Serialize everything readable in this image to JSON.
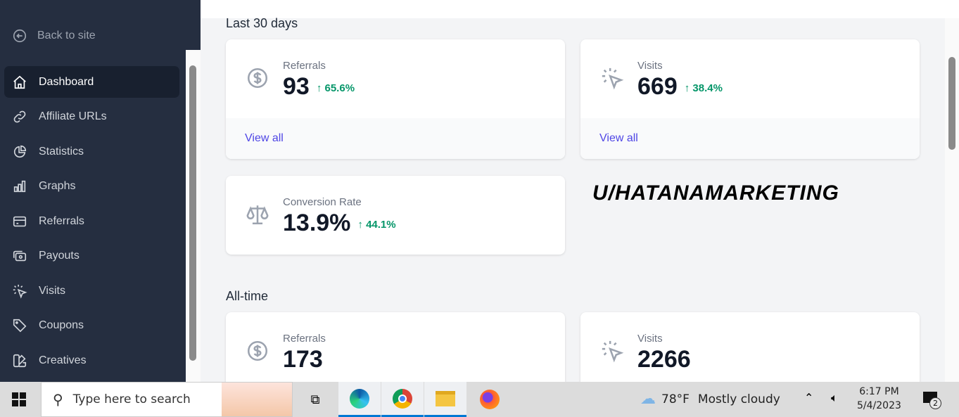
{
  "sidebar": {
    "back_label": "Back to site",
    "items": [
      {
        "label": "Dashboard",
        "icon": "home-icon",
        "active": true
      },
      {
        "label": "Affiliate URLs",
        "icon": "link-icon"
      },
      {
        "label": "Statistics",
        "icon": "pie-chart-icon"
      },
      {
        "label": "Graphs",
        "icon": "bar-chart-icon"
      },
      {
        "label": "Referrals",
        "icon": "credit-card-icon"
      },
      {
        "label": "Payouts",
        "icon": "cash-icon"
      },
      {
        "label": "Visits",
        "icon": "cursor-click-icon"
      },
      {
        "label": "Coupons",
        "icon": "tag-icon"
      },
      {
        "label": "Creatives",
        "icon": "color-swatch-icon"
      }
    ]
  },
  "last30": {
    "title": "Last 30 days",
    "referrals": {
      "label": "Referrals",
      "value": "93",
      "delta": "65.6%",
      "link": "View all"
    },
    "visits": {
      "label": "Visits",
      "value": "669",
      "delta": "38.4%",
      "link": "View all"
    },
    "conversion": {
      "label": "Conversion Rate",
      "value": "13.9%",
      "delta": "44.1%"
    }
  },
  "alltime": {
    "title": "All-time",
    "referrals": {
      "label": "Referrals",
      "value": "173"
    },
    "visits": {
      "label": "Visits",
      "value": "2266"
    }
  },
  "watermark": "U/HATANAMARKETING",
  "colors": {
    "sidebar": "#252e40",
    "accent": "#4f46e5",
    "positive": "#059669"
  },
  "taskbar": {
    "search_placeholder": "Type here to search",
    "temperature": "78°F",
    "weather": "Mostly cloudy",
    "time": "6:17 PM",
    "date": "5/4/2023",
    "notifications": "2"
  }
}
